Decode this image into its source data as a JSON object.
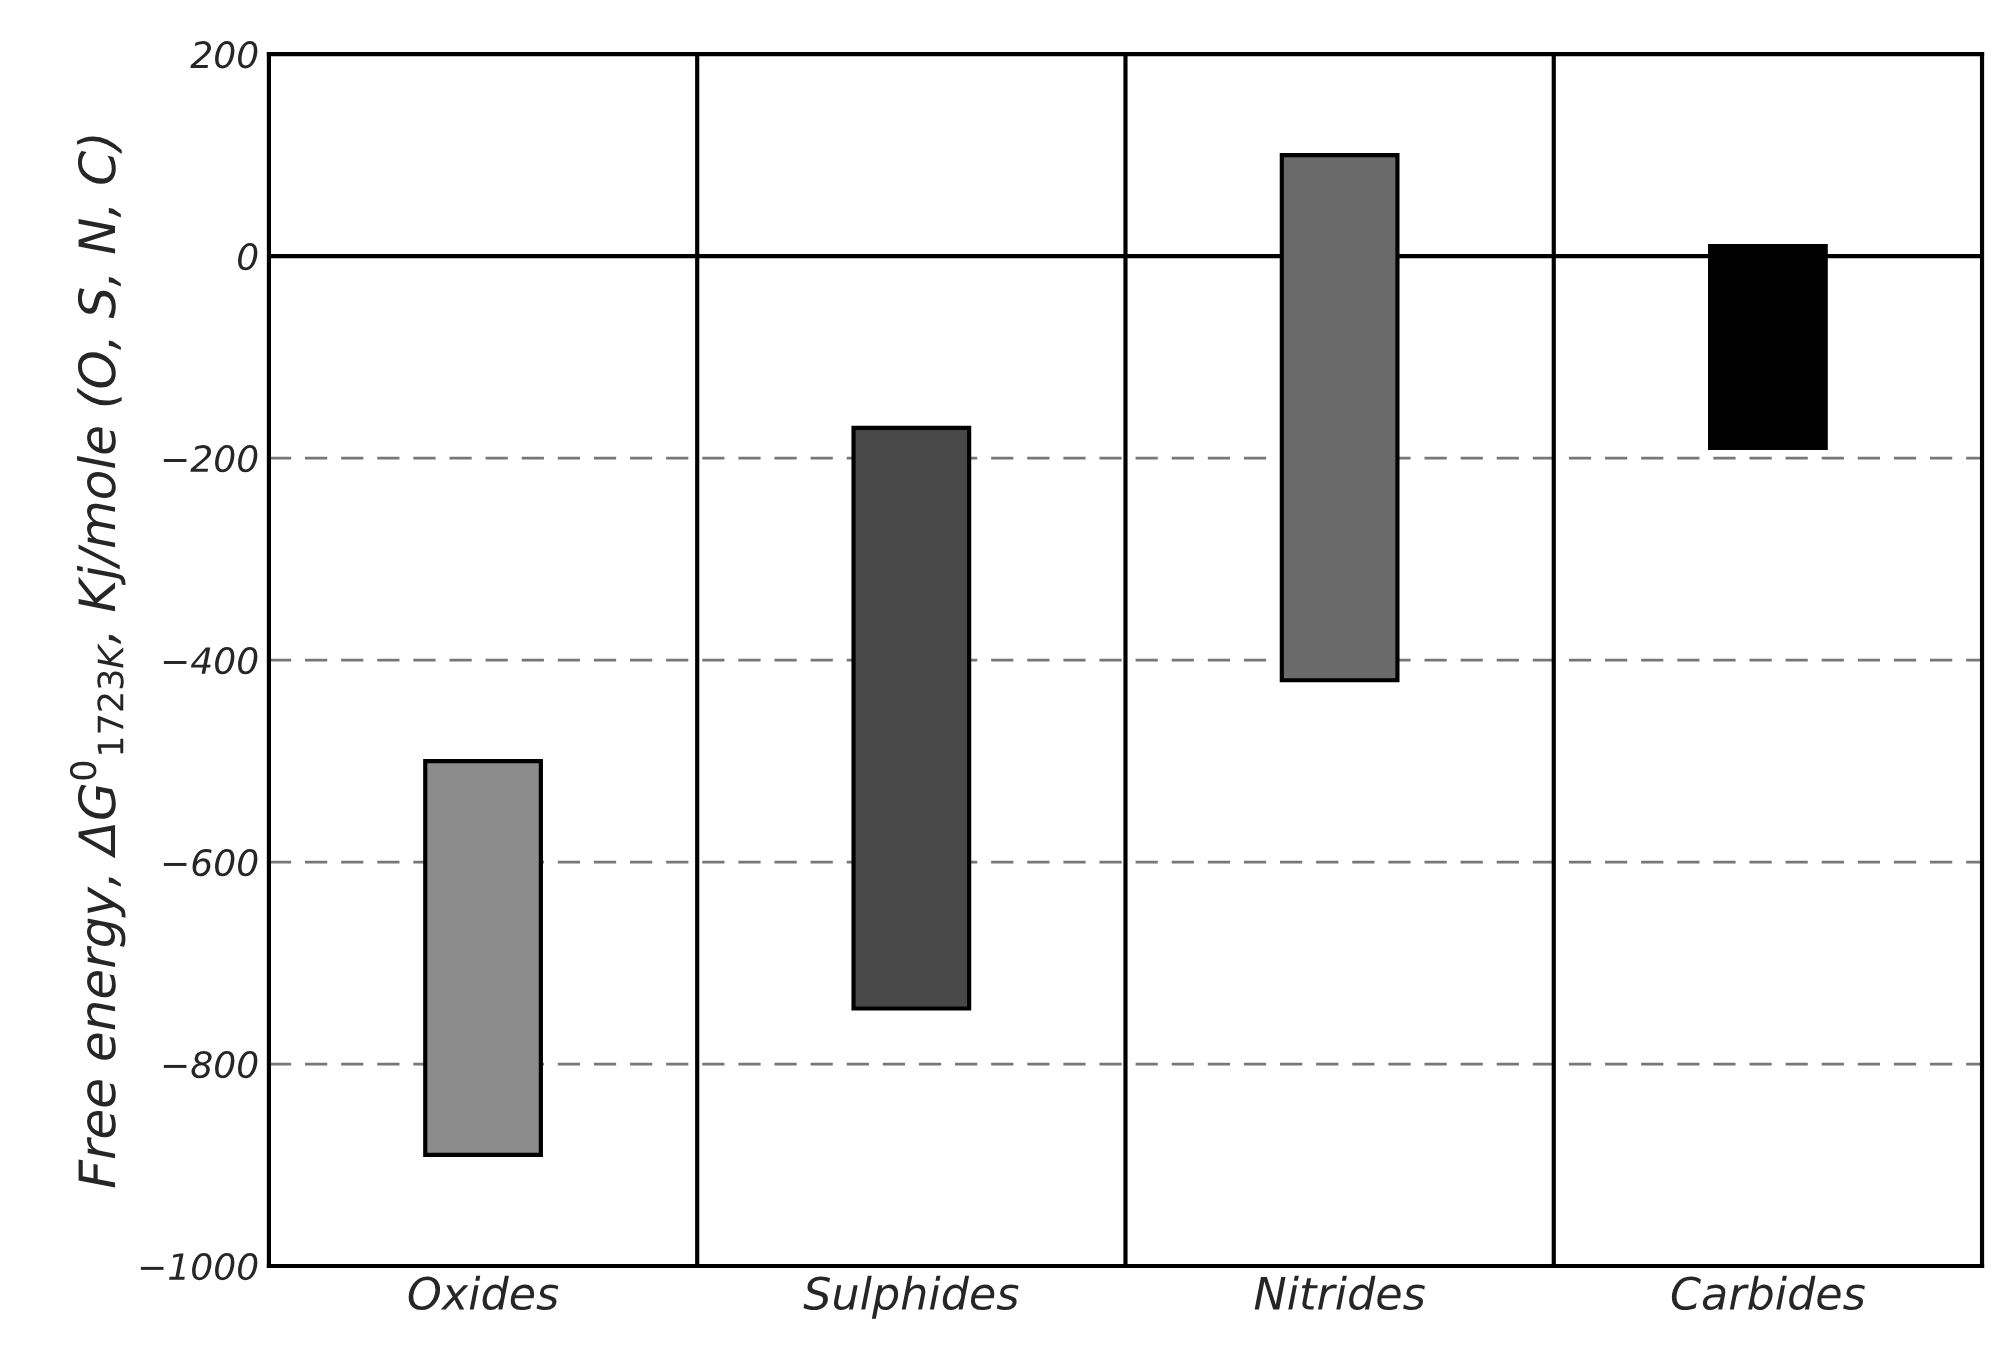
{
  "chart_data": {
    "type": "bar",
    "ylabel": "Free energy, ΔG$^{0}$$_{1723K}$, Kj/mole (O, S, N, C)",
    "categories": [
      "Oxides",
      "Sulphides",
      "Nitrides",
      "Carbides"
    ],
    "values": [
      390,
      575,
      520,
      200
    ],
    "base": [
      -890,
      -745,
      -420,
      -190
    ],
    "colors": [
      "#8c8c8c",
      "#484848",
      "#6a6a6a",
      "#000000"
    ],
    "ylim": [
      -1000,
      200
    ],
    "yticks": [
      -1000,
      -800,
      -600,
      -400,
      -200,
      0,
      200
    ],
    "grid": "y"
  }
}
